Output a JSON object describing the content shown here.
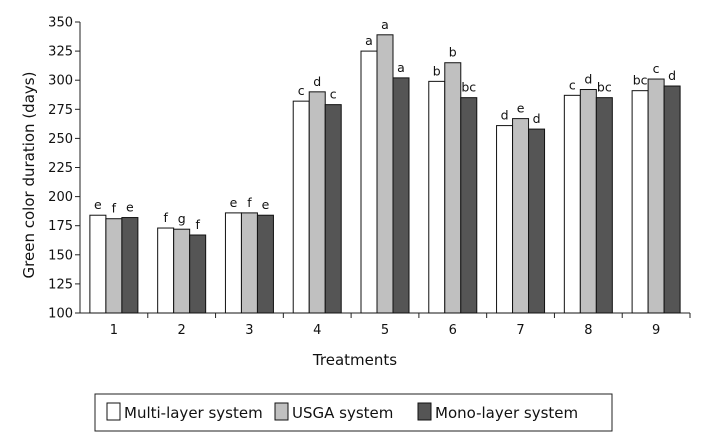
{
  "chart_data": {
    "type": "bar",
    "ylabel": "Green color duration (days)",
    "xlabel": "Treatments",
    "ylim": [
      100,
      350
    ],
    "yticks": [
      100,
      125,
      150,
      175,
      200,
      225,
      250,
      275,
      300,
      325,
      350
    ],
    "categories": [
      "1",
      "2",
      "3",
      "4",
      "5",
      "6",
      "7",
      "8",
      "9"
    ],
    "series": [
      {
        "name": "Multi-layer system",
        "color": "#ffffff",
        "values": [
          184,
          173,
          186,
          282,
          325,
          299,
          261,
          287,
          291
        ],
        "labels": [
          "e",
          "f",
          "e",
          "c",
          "a",
          "b",
          "d",
          "c",
          "bc"
        ]
      },
      {
        "name": "USGA system",
        "color": "#c0c0c0",
        "values": [
          181,
          172,
          186,
          290,
          339,
          315,
          267,
          292,
          301
        ],
        "labels": [
          "f",
          "g",
          "f",
          "d",
          "a",
          "b",
          "e",
          "d",
          "c"
        ]
      },
      {
        "name": "Mono-layer system",
        "color": "#555555",
        "values": [
          182,
          167,
          184,
          279,
          302,
          285,
          258,
          285,
          295
        ],
        "labels": [
          "e",
          "f",
          "e",
          "c",
          "a",
          "bc",
          "d",
          "bc",
          "d"
        ]
      }
    ],
    "legend_position": "bottom"
  }
}
